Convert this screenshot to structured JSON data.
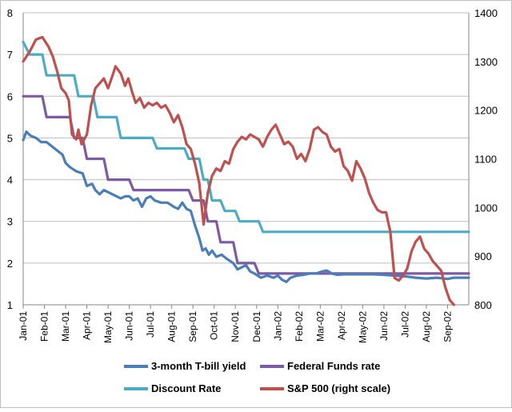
{
  "chart_data": {
    "type": "line",
    "title": "",
    "categories": [
      "Jan-01",
      "Feb-01",
      "Mar-01",
      "Apr-01",
      "May-01",
      "Jun-01",
      "Jul-01",
      "Aug-01",
      "Sep-01",
      "Oct-01",
      "Nov-01",
      "Dec-01",
      "Jan-02",
      "Feb-02",
      "Mar-02",
      "Apr-02",
      "May-02",
      "Jun-02",
      "Jul-02",
      "Aug-02",
      "Sep-02"
    ],
    "x_range": [
      0,
      21
    ],
    "y_left": {
      "min": 1,
      "max": 8,
      "ticks": [
        "1",
        "2",
        "3",
        "4",
        "5",
        "6",
        "7",
        "8"
      ]
    },
    "y_right": {
      "min": 800,
      "max": 1400,
      "ticks": [
        "800",
        "900",
        "1000",
        "1100",
        "1200",
        "1300",
        "1400"
      ]
    },
    "grid": true,
    "legend_position": "bottom",
    "series": [
      {
        "name": "3-month T-bill yield",
        "axis": "left",
        "color": "#4a7ebb",
        "points": [
          [
            0,
            4.95
          ],
          [
            0.15,
            5.15
          ],
          [
            0.35,
            5.05
          ],
          [
            0.6,
            5.0
          ],
          [
            0.85,
            4.9
          ],
          [
            1.1,
            4.9
          ],
          [
            1.35,
            4.8
          ],
          [
            1.6,
            4.7
          ],
          [
            1.85,
            4.6
          ],
          [
            2.0,
            4.4
          ],
          [
            2.2,
            4.3
          ],
          [
            2.5,
            4.2
          ],
          [
            2.8,
            4.15
          ],
          [
            3.0,
            3.85
          ],
          [
            3.25,
            3.9
          ],
          [
            3.4,
            3.75
          ],
          [
            3.6,
            3.65
          ],
          [
            3.8,
            3.75
          ],
          [
            4.0,
            3.7
          ],
          [
            4.2,
            3.65
          ],
          [
            4.4,
            3.6
          ],
          [
            4.6,
            3.55
          ],
          [
            4.8,
            3.6
          ],
          [
            5.0,
            3.6
          ],
          [
            5.2,
            3.5
          ],
          [
            5.4,
            3.55
          ],
          [
            5.6,
            3.35
          ],
          [
            5.8,
            3.55
          ],
          [
            6.0,
            3.6
          ],
          [
            6.2,
            3.5
          ],
          [
            6.5,
            3.45
          ],
          [
            6.8,
            3.45
          ],
          [
            7.1,
            3.35
          ],
          [
            7.3,
            3.3
          ],
          [
            7.5,
            3.45
          ],
          [
            7.7,
            3.3
          ],
          [
            7.9,
            3.25
          ],
          [
            8.1,
            2.9
          ],
          [
            8.3,
            2.6
          ],
          [
            8.45,
            2.3
          ],
          [
            8.6,
            2.35
          ],
          [
            8.75,
            2.2
          ],
          [
            8.9,
            2.3
          ],
          [
            9.1,
            2.15
          ],
          [
            9.35,
            2.2
          ],
          [
            9.6,
            2.1
          ],
          [
            9.9,
            2.0
          ],
          [
            10.1,
            1.85
          ],
          [
            10.3,
            1.9
          ],
          [
            10.5,
            1.95
          ],
          [
            10.7,
            1.8
          ],
          [
            10.9,
            1.75
          ],
          [
            11.2,
            1.65
          ],
          [
            11.5,
            1.7
          ],
          [
            11.8,
            1.65
          ],
          [
            12.0,
            1.7
          ],
          [
            12.2,
            1.6
          ],
          [
            12.4,
            1.55
          ],
          [
            12.6,
            1.65
          ],
          [
            12.9,
            1.7
          ],
          [
            13.2,
            1.72
          ],
          [
            13.5,
            1.75
          ],
          [
            13.8,
            1.75
          ],
          [
            14.1,
            1.8
          ],
          [
            14.3,
            1.82
          ],
          [
            14.55,
            1.75
          ],
          [
            14.8,
            1.72
          ],
          [
            15.1,
            1.73
          ],
          [
            15.5,
            1.73
          ],
          [
            16.0,
            1.73
          ],
          [
            16.5,
            1.73
          ],
          [
            17.0,
            1.72
          ],
          [
            17.5,
            1.7
          ],
          [
            18.0,
            1.68
          ],
          [
            18.5,
            1.65
          ],
          [
            19.0,
            1.63
          ],
          [
            19.5,
            1.65
          ],
          [
            20.0,
            1.62
          ],
          [
            20.3,
            1.65
          ],
          [
            20.6,
            1.65
          ],
          [
            21.0,
            1.65
          ]
        ]
      },
      {
        "name": "Federal Funds rate",
        "axis": "left",
        "color": "#7d5aa6",
        "points": [
          [
            0,
            6.0
          ],
          [
            0.9,
            6.0
          ],
          [
            1.1,
            5.5
          ],
          [
            2.2,
            5.5
          ],
          [
            2.4,
            5.0
          ],
          [
            2.8,
            5.0
          ],
          [
            3.0,
            4.5
          ],
          [
            3.8,
            4.5
          ],
          [
            4.0,
            4.0
          ],
          [
            5.0,
            4.0
          ],
          [
            5.2,
            3.75
          ],
          [
            7.8,
            3.75
          ],
          [
            8.0,
            3.5
          ],
          [
            8.5,
            3.5
          ],
          [
            8.7,
            3.0
          ],
          [
            9.1,
            3.0
          ],
          [
            9.3,
            2.5
          ],
          [
            9.9,
            2.5
          ],
          [
            10.1,
            2.0
          ],
          [
            10.9,
            2.0
          ],
          [
            11.1,
            1.75
          ],
          [
            21.0,
            1.75
          ]
        ]
      },
      {
        "name": "Discount Rate",
        "axis": "left",
        "color": "#4bacc6",
        "points": [
          [
            0,
            7.3
          ],
          [
            0.3,
            7.0
          ],
          [
            0.9,
            7.0
          ],
          [
            1.1,
            6.5
          ],
          [
            2.4,
            6.5
          ],
          [
            2.6,
            6.0
          ],
          [
            3.3,
            6.0
          ],
          [
            3.5,
            5.5
          ],
          [
            4.4,
            5.5
          ],
          [
            4.6,
            5.0
          ],
          [
            6.1,
            5.0
          ],
          [
            6.3,
            4.75
          ],
          [
            7.6,
            4.75
          ],
          [
            7.8,
            4.5
          ],
          [
            8.3,
            4.5
          ],
          [
            8.5,
            4.0
          ],
          [
            8.7,
            4.0
          ],
          [
            8.9,
            3.5
          ],
          [
            9.3,
            3.5
          ],
          [
            9.5,
            3.25
          ],
          [
            10.0,
            3.25
          ],
          [
            10.2,
            3.0
          ],
          [
            11.1,
            3.0
          ],
          [
            11.3,
            2.75
          ],
          [
            21.0,
            2.75
          ]
        ]
      },
      {
        "name": "S&P 500 (right scale)",
        "axis": "right",
        "color": "#c0504d",
        "points": [
          [
            0,
            1300
          ],
          [
            0.3,
            1320
          ],
          [
            0.6,
            1345
          ],
          [
            0.9,
            1350
          ],
          [
            1.2,
            1330
          ],
          [
            1.4,
            1310
          ],
          [
            1.6,
            1280
          ],
          [
            1.8,
            1245
          ],
          [
            2.0,
            1235
          ],
          [
            2.15,
            1220
          ],
          [
            2.3,
            1150
          ],
          [
            2.5,
            1140
          ],
          [
            2.6,
            1160
          ],
          [
            2.75,
            1130
          ],
          [
            3.0,
            1150
          ],
          [
            3.2,
            1210
          ],
          [
            3.4,
            1245
          ],
          [
            3.6,
            1255
          ],
          [
            3.8,
            1265
          ],
          [
            4.0,
            1245
          ],
          [
            4.2,
            1270
          ],
          [
            4.35,
            1290
          ],
          [
            4.6,
            1275
          ],
          [
            4.8,
            1250
          ],
          [
            4.95,
            1265
          ],
          [
            5.15,
            1235
          ],
          [
            5.3,
            1215
          ],
          [
            5.5,
            1225
          ],
          [
            5.7,
            1205
          ],
          [
            5.9,
            1215
          ],
          [
            6.1,
            1210
          ],
          [
            6.3,
            1215
          ],
          [
            6.5,
            1205
          ],
          [
            6.7,
            1210
          ],
          [
            6.9,
            1195
          ],
          [
            7.1,
            1175
          ],
          [
            7.3,
            1190
          ],
          [
            7.5,
            1165
          ],
          [
            7.7,
            1130
          ],
          [
            7.9,
            1120
          ],
          [
            8.1,
            1090
          ],
          [
            8.3,
            1050
          ],
          [
            8.5,
            965
          ],
          [
            8.7,
            1030
          ],
          [
            8.9,
            1065
          ],
          [
            9.1,
            1080
          ],
          [
            9.3,
            1075
          ],
          [
            9.5,
            1095
          ],
          [
            9.7,
            1090
          ],
          [
            9.9,
            1120
          ],
          [
            10.1,
            1135
          ],
          [
            10.3,
            1145
          ],
          [
            10.5,
            1140
          ],
          [
            10.7,
            1150
          ],
          [
            10.9,
            1145
          ],
          [
            11.1,
            1140
          ],
          [
            11.3,
            1125
          ],
          [
            11.5,
            1145
          ],
          [
            11.7,
            1160
          ],
          [
            11.9,
            1170
          ],
          [
            12.1,
            1150
          ],
          [
            12.3,
            1130
          ],
          [
            12.5,
            1135
          ],
          [
            12.7,
            1125
          ],
          [
            12.9,
            1100
          ],
          [
            13.1,
            1110
          ],
          [
            13.3,
            1095
          ],
          [
            13.5,
            1120
          ],
          [
            13.7,
            1160
          ],
          [
            13.9,
            1165
          ],
          [
            14.1,
            1155
          ],
          [
            14.3,
            1150
          ],
          [
            14.5,
            1125
          ],
          [
            14.7,
            1115
          ],
          [
            14.9,
            1120
          ],
          [
            15.1,
            1085
          ],
          [
            15.3,
            1075
          ],
          [
            15.5,
            1055
          ],
          [
            15.7,
            1095
          ],
          [
            15.9,
            1080
          ],
          [
            16.1,
            1060
          ],
          [
            16.3,
            1030
          ],
          [
            16.5,
            1010
          ],
          [
            16.7,
            995
          ],
          [
            16.9,
            990
          ],
          [
            17.1,
            990
          ],
          [
            17.3,
            950
          ],
          [
            17.5,
            855
          ],
          [
            17.7,
            850
          ],
          [
            17.9,
            860
          ],
          [
            18.1,
            875
          ],
          [
            18.3,
            910
          ],
          [
            18.5,
            930
          ],
          [
            18.7,
            940
          ],
          [
            18.9,
            915
          ],
          [
            19.1,
            905
          ],
          [
            19.3,
            890
          ],
          [
            19.5,
            880
          ],
          [
            19.7,
            870
          ],
          [
            19.9,
            835
          ],
          [
            20.1,
            810
          ],
          [
            20.3,
            800
          ]
        ]
      }
    ]
  }
}
